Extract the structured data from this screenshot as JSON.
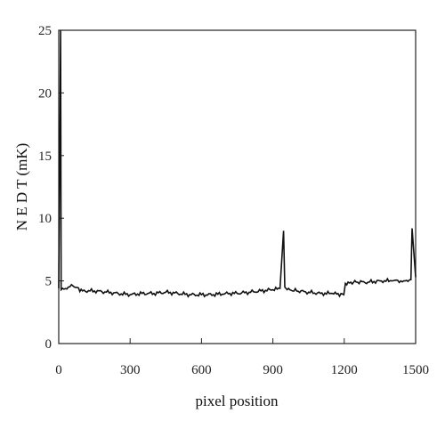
{
  "chart_data": {
    "type": "line",
    "title": "",
    "xlabel": "pixel position",
    "ylabel": "N E D T (mK)",
    "xlim": [
      0,
      1500
    ],
    "ylim": [
      0,
      25
    ],
    "x_ticks": [
      0,
      300,
      600,
      900,
      1200,
      1500
    ],
    "y_ticks": [
      0,
      5,
      10,
      15,
      20,
      25
    ],
    "x_tick_labels": [
      "0",
      "300",
      "600",
      "900",
      "1200",
      "1500"
    ],
    "y_tick_labels": [
      "0",
      "5",
      "10",
      "15",
      "20",
      "25"
    ],
    "grid": false,
    "line_color": "#111111",
    "series": [
      {
        "x": [
          0,
          8,
          10,
          40,
          60,
          100,
          150,
          200,
          250,
          300,
          350,
          400,
          450,
          500,
          550,
          600,
          650,
          700,
          750,
          800,
          850,
          900,
          930,
          945,
          950,
          960,
          1000,
          1050,
          1100,
          1150,
          1198,
          1205,
          1250,
          1300,
          1350,
          1400,
          1450,
          1480,
          1485,
          1500
        ],
        "y": [
          4.4,
          25,
          4.3,
          4.5,
          4.6,
          4.2,
          4.2,
          4.1,
          4.0,
          3.9,
          4.0,
          4.0,
          4.1,
          4.0,
          3.9,
          3.9,
          3.9,
          4.0,
          4.0,
          4.1,
          4.2,
          4.3,
          4.4,
          9.0,
          4.5,
          4.3,
          4.2,
          4.1,
          4.0,
          4.0,
          3.9,
          4.8,
          4.9,
          4.9,
          5.0,
          5.0,
          5.0,
          5.1,
          9.2,
          5.3
        ]
      }
    ],
    "spikes": [
      {
        "x": 8,
        "y": 25
      },
      {
        "x": 945,
        "y": 9.0
      },
      {
        "x": 1485,
        "y": 9.2
      }
    ]
  }
}
